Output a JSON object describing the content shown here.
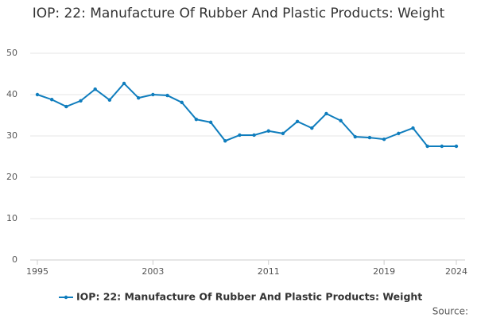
{
  "chart_data": {
    "type": "line",
    "title": "IOP: 22: Manufacture Of Rubber And Plastic Products: Weight",
    "x": [
      1995,
      1996,
      1997,
      1998,
      1999,
      2000,
      2001,
      2002,
      2003,
      2004,
      2005,
      2006,
      2007,
      2008,
      2009,
      2010,
      2011,
      2012,
      2013,
      2014,
      2015,
      2016,
      2017,
      2018,
      2019,
      2020,
      2021,
      2022,
      2023,
      2024
    ],
    "series": [
      {
        "name": "IOP: 22: Manufacture Of Rubber And Plastic Products: Weight",
        "color": "#0f7dbd",
        "values": [
          40.0,
          38.8,
          37.1,
          38.5,
          41.3,
          38.7,
          42.7,
          39.2,
          40.0,
          39.8,
          38.1,
          34.0,
          33.3,
          28.8,
          30.2,
          30.2,
          31.2,
          30.6,
          33.5,
          31.9,
          35.4,
          33.7,
          29.8,
          29.6,
          29.2,
          30.6,
          31.9,
          27.5,
          27.5,
          27.5
        ]
      }
    ],
    "xlim": [
      1995,
      2024
    ],
    "xticks": [
      1995,
      2003,
      2011,
      2019,
      2024
    ],
    "ylim": [
      0,
      50
    ],
    "yticks": [
      0,
      10,
      20,
      30,
      40,
      50
    ],
    "grid": true,
    "source": "Source:"
  }
}
